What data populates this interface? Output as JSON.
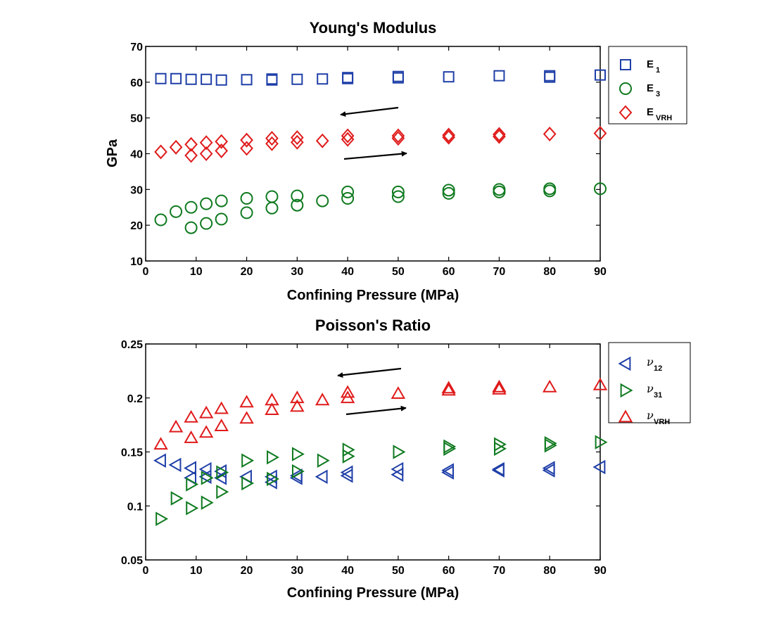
{
  "chart_data": [
    {
      "type": "scatter",
      "title": "Young's Modulus",
      "xlabel": "Confining Pressure (MPa)",
      "ylabel": "GPa",
      "xlim": [
        0,
        90
      ],
      "ylim": [
        10,
        70
      ],
      "xticks": [
        "0",
        "10",
        "20",
        "30",
        "40",
        "50",
        "60",
        "70",
        "80",
        "90"
      ],
      "yticks": [
        "10",
        "20",
        "30",
        "40",
        "50",
        "60",
        "70"
      ],
      "legend_position": "outside-top-right",
      "arrows": [
        "pointing-left",
        "pointing-right"
      ],
      "series": [
        {
          "name": "E",
          "name_sub": "1",
          "marker": "square",
          "color": "#1f3fa8",
          "points": [
            [
              3,
              61
            ],
            [
              6,
              61
            ],
            [
              9,
              60.8
            ],
            [
              12,
              60.8
            ],
            [
              15,
              60.6
            ],
            [
              20,
              60.7
            ],
            [
              25,
              60.6
            ],
            [
              25,
              60.9
            ],
            [
              30,
              60.8
            ],
            [
              35,
              60.9
            ],
            [
              40,
              61
            ],
            [
              40,
              61.3
            ],
            [
              50,
              61.2
            ],
            [
              50,
              61.6
            ],
            [
              60,
              61.5
            ],
            [
              70,
              61.8
            ],
            [
              80,
              61.4
            ],
            [
              80,
              61.8
            ],
            [
              90,
              62
            ]
          ]
        },
        {
          "name": "E",
          "name_sub": "3",
          "marker": "circle",
          "color": "#0f7a1f",
          "points": [
            [
              3,
              21.5
            ],
            [
              6,
              23.8
            ],
            [
              9,
              25
            ],
            [
              9,
              19.3
            ],
            [
              12,
              26
            ],
            [
              12,
              20.5
            ],
            [
              15,
              26.8
            ],
            [
              15,
              21.7
            ],
            [
              20,
              27.5
            ],
            [
              20,
              23.5
            ],
            [
              25,
              28
            ],
            [
              25,
              24.8
            ],
            [
              30,
              28.2
            ],
            [
              30,
              25.6
            ],
            [
              35,
              26.8
            ],
            [
              40,
              29.3
            ],
            [
              40,
              27.5
            ],
            [
              50,
              29.3
            ],
            [
              50,
              28
            ],
            [
              60,
              29.8
            ],
            [
              60,
              28.9
            ],
            [
              70,
              30
            ],
            [
              70,
              29.3
            ],
            [
              80,
              30.2
            ],
            [
              80,
              29.6
            ],
            [
              90,
              30.2
            ]
          ]
        },
        {
          "name": "E",
          "name_sub": "VRH",
          "marker": "diamond",
          "color": "#e01b1b",
          "points": [
            [
              3,
              40.5
            ],
            [
              6,
              41.8
            ],
            [
              9,
              42.6
            ],
            [
              9,
              39.5
            ],
            [
              12,
              43.1
            ],
            [
              12,
              40
            ],
            [
              15,
              43.4
            ],
            [
              15,
              40.8
            ],
            [
              20,
              43.8
            ],
            [
              20,
              41.5
            ],
            [
              25,
              44.3
            ],
            [
              25,
              42.8
            ],
            [
              30,
              44.5
            ],
            [
              30,
              43.2
            ],
            [
              35,
              43.6
            ],
            [
              40,
              45
            ],
            [
              40,
              44
            ],
            [
              50,
              45
            ],
            [
              50,
              44.3
            ],
            [
              60,
              45.2
            ],
            [
              60,
              44.6
            ],
            [
              70,
              45.4
            ],
            [
              70,
              44.8
            ],
            [
              80,
              45.5
            ],
            [
              90,
              45.7
            ]
          ]
        }
      ]
    },
    {
      "type": "scatter",
      "title": "Poisson's Ratio",
      "xlabel": "Confining Pressure (MPa)",
      "ylabel": "",
      "xlim": [
        0,
        90
      ],
      "ylim": [
        0.05,
        0.25
      ],
      "xticks": [
        "0",
        "10",
        "20",
        "30",
        "40",
        "50",
        "60",
        "70",
        "80",
        "90"
      ],
      "yticks": [
        "0.05",
        "0.1",
        "0.15",
        "0.2",
        "0.25"
      ],
      "legend_position": "outside-top-right",
      "arrows": [
        "pointing-left",
        "pointing-right"
      ],
      "series": [
        {
          "name": "ν",
          "name_sub": "12",
          "marker": "triangle-left",
          "color": "#1f3fa8",
          "points": [
            [
              3,
              0.142
            ],
            [
              6,
              0.138
            ],
            [
              9,
              0.135
            ],
            [
              9,
              0.126
            ],
            [
              12,
              0.134
            ],
            [
              12,
              0.127
            ],
            [
              15,
              0.132
            ],
            [
              15,
              0.126
            ],
            [
              20,
              0.127
            ],
            [
              25,
              0.127
            ],
            [
              25,
              0.122
            ],
            [
              30,
              0.128
            ],
            [
              30,
              0.126
            ],
            [
              35,
              0.127
            ],
            [
              40,
              0.131
            ],
            [
              40,
              0.128
            ],
            [
              50,
              0.134
            ],
            [
              50,
              0.129
            ],
            [
              60,
              0.133
            ],
            [
              60,
              0.131
            ],
            [
              70,
              0.134
            ],
            [
              70,
              0.133
            ],
            [
              80,
              0.135
            ],
            [
              80,
              0.133
            ],
            [
              90,
              0.136
            ]
          ]
        },
        {
          "name": "ν",
          "name_sub": "31",
          "marker": "triangle-right",
          "color": "#0f7a1f",
          "points": [
            [
              3,
              0.088
            ],
            [
              6,
              0.107
            ],
            [
              9,
              0.12
            ],
            [
              9,
              0.098
            ],
            [
              12,
              0.126
            ],
            [
              12,
              0.103
            ],
            [
              15,
              0.131
            ],
            [
              15,
              0.113
            ],
            [
              20,
              0.142
            ],
            [
              20,
              0.121
            ],
            [
              25,
              0.145
            ],
            [
              25,
              0.125
            ],
            [
              30,
              0.148
            ],
            [
              30,
              0.132
            ],
            [
              35,
              0.142
            ],
            [
              40,
              0.152
            ],
            [
              40,
              0.146
            ],
            [
              50,
              0.15
            ],
            [
              60,
              0.155
            ],
            [
              60,
              0.153
            ],
            [
              70,
              0.157
            ],
            [
              70,
              0.153
            ],
            [
              80,
              0.158
            ],
            [
              80,
              0.156
            ],
            [
              90,
              0.159
            ]
          ]
        },
        {
          "name": "ν",
          "name_sub": "VRH",
          "marker": "triangle-up",
          "color": "#e01b1b",
          "points": [
            [
              3,
              0.157
            ],
            [
              6,
              0.173
            ],
            [
              9,
              0.182
            ],
            [
              9,
              0.163
            ],
            [
              12,
              0.186
            ],
            [
              12,
              0.168
            ],
            [
              15,
              0.19
            ],
            [
              15,
              0.174
            ],
            [
              20,
              0.196
            ],
            [
              20,
              0.181
            ],
            [
              25,
              0.198
            ],
            [
              25,
              0.189
            ],
            [
              30,
              0.2
            ],
            [
              30,
              0.192
            ],
            [
              35,
              0.198
            ],
            [
              40,
              0.205
            ],
            [
              40,
              0.2
            ],
            [
              50,
              0.204
            ],
            [
              60,
              0.209
            ],
            [
              60,
              0.207
            ],
            [
              70,
              0.21
            ],
            [
              70,
              0.208
            ],
            [
              80,
              0.21
            ],
            [
              90,
              0.212
            ]
          ]
        }
      ]
    }
  ]
}
